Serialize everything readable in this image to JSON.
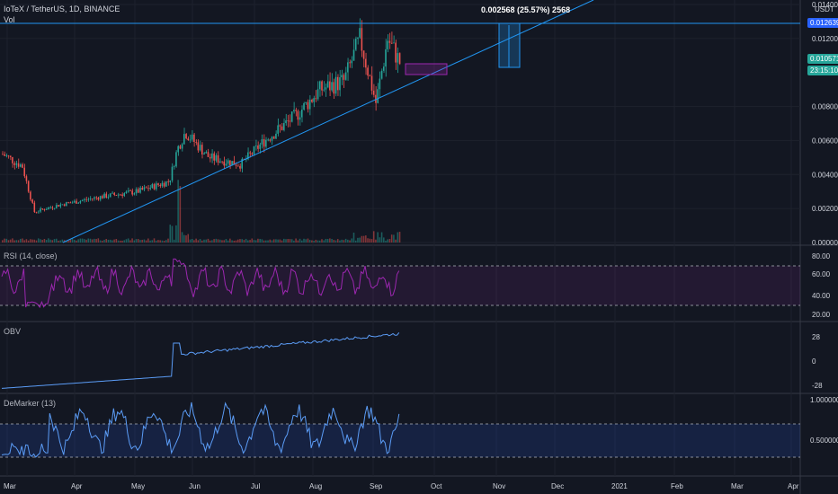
{
  "header": {
    "symbol": "IoTeX / TetherUS, 1D, BINANCE",
    "vol_label": "Vol",
    "measure_label": "0.002568 (25.57%) 2568",
    "currency": "USDT"
  },
  "price_axis": {
    "ticks": [
      "0.014000",
      "0.012000",
      "0.008000",
      "0.006000",
      "0.004000",
      "0.002000",
      "0.000000"
    ],
    "hline_value": "0.012639",
    "last_price": "0.010571",
    "countdown": "23:15:10"
  },
  "panes": {
    "rsi": {
      "label": "RSI (14, close)",
      "ticks": [
        "80.00",
        "60.00",
        "40.00",
        "20.00"
      ]
    },
    "obv": {
      "label": "OBV",
      "ticks": [
        "28",
        "0",
        "-28"
      ]
    },
    "demarker": {
      "label": "DeMarker (13)",
      "ticks": [
        "1.000000",
        "0.500000"
      ]
    }
  },
  "time_axis": {
    "labels": [
      "Mar",
      "Apr",
      "May",
      "Jun",
      "Jul",
      "Aug",
      "Sep",
      "Oct",
      "Nov",
      "Dec",
      "2021",
      "Feb",
      "Mar",
      "Apr"
    ]
  },
  "colors": {
    "background": "#131722",
    "up": "#26a69a",
    "down": "#ef5350",
    "trendline": "#2196f3",
    "rsi": "#9c27b0",
    "obv": "#5b9cf6",
    "demarker": "#5b9cf6",
    "last_price_badge": "#26a69a",
    "hline_badge": "#2962ff"
  },
  "chart_data": {
    "type": "candlestick",
    "title": "IoTeX / TetherUS, 1D, BINANCE",
    "price_range": [
      0,
      0.014
    ],
    "price_keypoints": [
      {
        "x": 0,
        "y": 0.0052
      },
      {
        "x": 0.05,
        "y": 0.0045
      },
      {
        "x": 0.08,
        "y": 0.0018
      },
      {
        "x": 0.14,
        "y": 0.0022
      },
      {
        "x": 0.25,
        "y": 0.0027
      },
      {
        "x": 0.34,
        "y": 0.003
      },
      {
        "x": 0.42,
        "y": 0.0036
      },
      {
        "x": 0.44,
        "y": 0.0055
      },
      {
        "x": 0.46,
        "y": 0.0065
      },
      {
        "x": 0.52,
        "y": 0.005
      },
      {
        "x": 0.6,
        "y": 0.0046
      },
      {
        "x": 0.66,
        "y": 0.006
      },
      {
        "x": 0.74,
        "y": 0.0075
      },
      {
        "x": 0.8,
        "y": 0.009
      },
      {
        "x": 0.86,
        "y": 0.0095
      },
      {
        "x": 0.9,
        "y": 0.012
      },
      {
        "x": 0.94,
        "y": 0.0082
      },
      {
        "x": 0.97,
        "y": 0.012
      },
      {
        "x": 1.0,
        "y": 0.0106
      }
    ],
    "candle_count": 200
  }
}
